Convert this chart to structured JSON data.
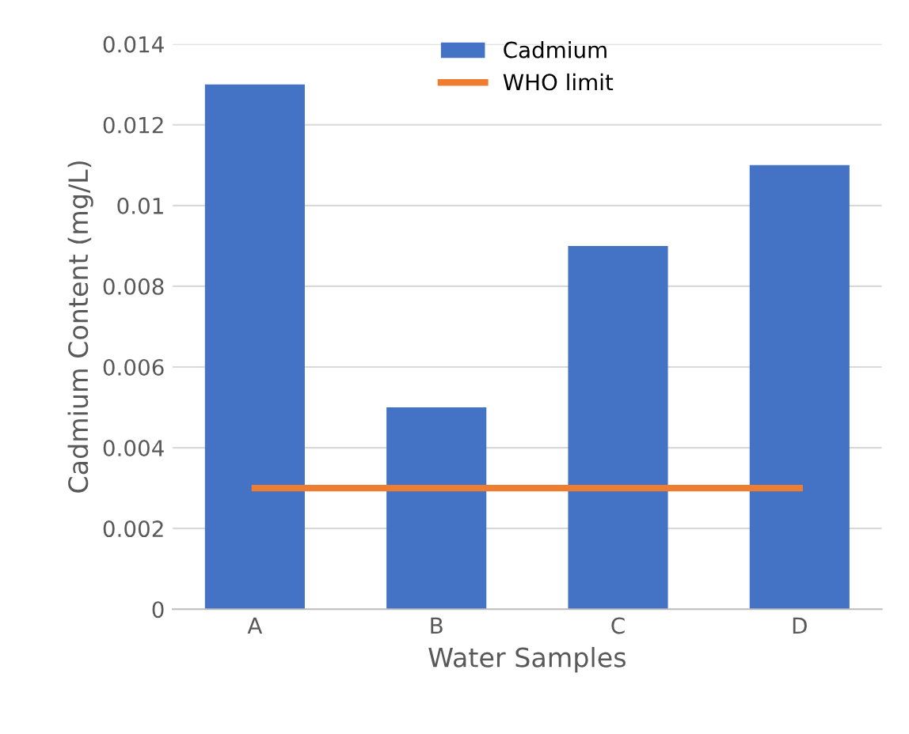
{
  "chart_data": {
    "type": "bar",
    "xlabel": "Water Samples",
    "ylabel": "Cadmium Content (mg/L)",
    "categories": [
      "A",
      "B",
      "C",
      "D"
    ],
    "series": [
      {
        "name": "Cadmium",
        "color": "#4472c4",
        "values": [
          0.013,
          0.005,
          0.009,
          0.011
        ]
      },
      {
        "name": "WHO limit",
        "type": "line",
        "color": "#ed7d31",
        "values": [
          0.003,
          0.003,
          0.003,
          0.003
        ]
      }
    ],
    "ylim": [
      0,
      0.014
    ],
    "yticks": [
      0,
      0.002,
      0.004,
      0.006,
      0.008,
      0.01,
      0.012,
      0.014
    ],
    "grid": "y",
    "legend": "top",
    "marker": "none"
  }
}
